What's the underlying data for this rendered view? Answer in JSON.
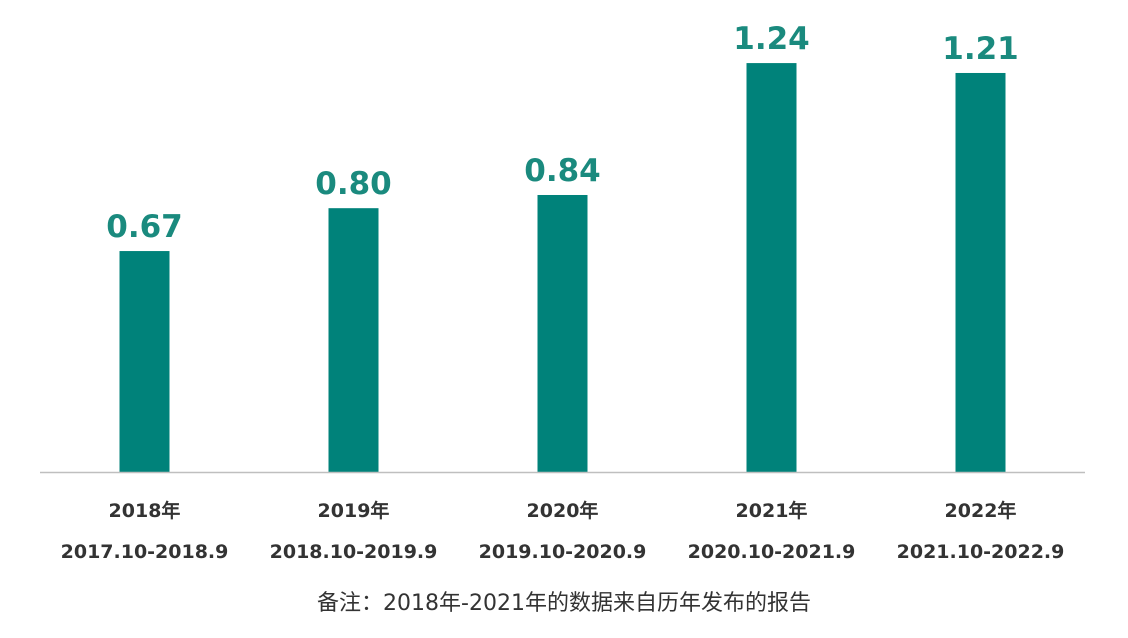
{
  "colors": {
    "bar": "#00827A",
    "value_label": "#1A8A7E",
    "axis": "#BFBFBF",
    "text": "#333333"
  },
  "chart_data": {
    "type": "bar",
    "categories": [
      "2018年",
      "2019年",
      "2020年",
      "2021年",
      "2022年"
    ],
    "category_sublabels": [
      "2017.10-2018.9",
      "2018.10-2019.9",
      "2019.10-2020.9",
      "2020.10-2021.9",
      "2021.10-2022.9"
    ],
    "values": [
      0.67,
      0.8,
      0.84,
      1.24,
      1.21
    ],
    "value_labels": [
      "0.67",
      "0.80",
      "0.84",
      "1.24",
      "1.21"
    ],
    "title": "",
    "xlabel": "",
    "ylabel": "",
    "ylim": [
      0,
      1.31
    ],
    "grid": false,
    "legend": "none"
  },
  "footnote": "备注：2018年-2021年的数据来自历年发布的报告"
}
